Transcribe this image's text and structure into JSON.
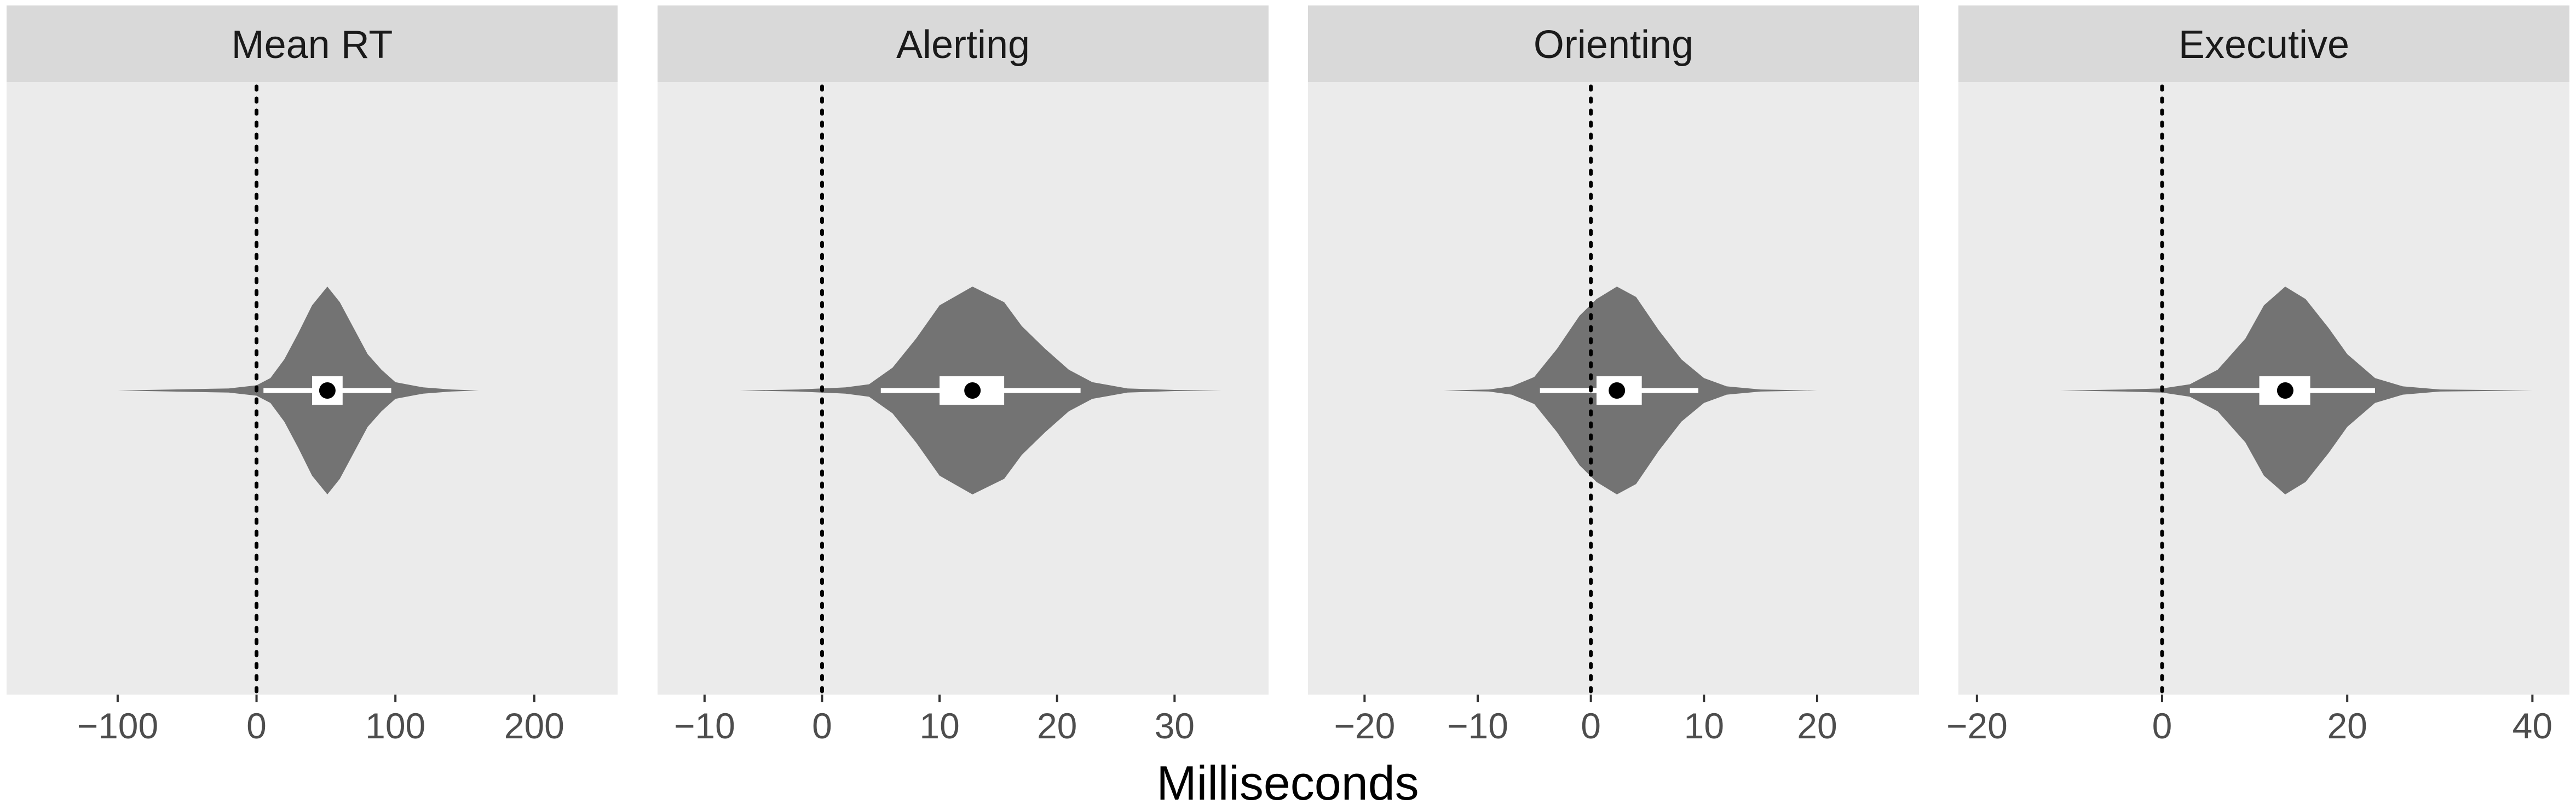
{
  "colors": {
    "page_bg": "#ffffff",
    "panel_bg": "#ebebeb",
    "strip_bg": "#d9d9d9",
    "strip_text": "#1a1a1a",
    "violin_fill": "#737373",
    "box_fill": "#ffffff",
    "whisker": "#ffffff",
    "median_point": "#000000",
    "reference_line": "#000000",
    "tick_label": "#4d4d4d",
    "axis_title": "#000000"
  },
  "x_axis_title": "Milliseconds",
  "chart_data": [
    {
      "type": "violin",
      "facet_label": "Mean RT",
      "xlim": [
        -180,
        260
      ],
      "ticks": [
        -100,
        0,
        100,
        200
      ],
      "tick_labels": [
        "−100",
        "0",
        "100",
        "200"
      ],
      "reference_line_x": 0,
      "reference_line_style": "dotted",
      "distribution": {
        "center": 51,
        "min": -100,
        "max": 160,
        "box": [
          40,
          62
        ],
        "whiskers": [
          5,
          97
        ],
        "point": 51,
        "density": [
          [
            -100,
            0.0
          ],
          [
            -60,
            0.01
          ],
          [
            -20,
            0.02
          ],
          [
            0,
            0.05
          ],
          [
            10,
            0.12
          ],
          [
            20,
            0.3
          ],
          [
            30,
            0.55
          ],
          [
            40,
            0.82
          ],
          [
            51,
            1.0
          ],
          [
            60,
            0.85
          ],
          [
            70,
            0.6
          ],
          [
            80,
            0.35
          ],
          [
            90,
            0.2
          ],
          [
            100,
            0.08
          ],
          [
            120,
            0.03
          ],
          [
            140,
            0.01
          ],
          [
            160,
            0.0
          ]
        ]
      }
    },
    {
      "type": "violin",
      "facet_label": "Alerting",
      "xlim": [
        -14,
        38
      ],
      "ticks": [
        -10,
        0,
        10,
        20,
        30
      ],
      "tick_labels": [
        "−10",
        "0",
        "10",
        "20",
        "30"
      ],
      "reference_line_x": 0,
      "reference_line_style": "dotted",
      "distribution": {
        "center": 12.8,
        "min": -7,
        "max": 34,
        "box": [
          10,
          15.5
        ],
        "whiskers": [
          5,
          22
        ],
        "point": 12.8,
        "density": [
          [
            -7,
            0.0
          ],
          [
            -2,
            0.01
          ],
          [
            2,
            0.03
          ],
          [
            4,
            0.06
          ],
          [
            6,
            0.22
          ],
          [
            8,
            0.5
          ],
          [
            10,
            0.82
          ],
          [
            12.8,
            1.0
          ],
          [
            15.5,
            0.85
          ],
          [
            17,
            0.62
          ],
          [
            19,
            0.4
          ],
          [
            21,
            0.2
          ],
          [
            23,
            0.08
          ],
          [
            26,
            0.02
          ],
          [
            30,
            0.005
          ],
          [
            34,
            0.0
          ]
        ]
      }
    },
    {
      "type": "violin",
      "facet_label": "Orienting",
      "xlim": [
        -25,
        29
      ],
      "ticks": [
        -20,
        -10,
        0,
        10,
        20
      ],
      "tick_labels": [
        "−20",
        "−10",
        "0",
        "10",
        "20"
      ],
      "reference_line_x": 0,
      "reference_line_style": "dotted",
      "distribution": {
        "center": 2.3,
        "min": -13,
        "max": 20,
        "box": [
          0.5,
          4.5
        ],
        "whiskers": [
          -4.5,
          9.5
        ],
        "point": 2.3,
        "density": [
          [
            -13,
            0.0
          ],
          [
            -9,
            0.01
          ],
          [
            -7,
            0.04
          ],
          [
            -5,
            0.13
          ],
          [
            -3,
            0.4
          ],
          [
            -1,
            0.72
          ],
          [
            0.5,
            0.88
          ],
          [
            2.3,
            1.0
          ],
          [
            4,
            0.9
          ],
          [
            6,
            0.58
          ],
          [
            8,
            0.3
          ],
          [
            10,
            0.12
          ],
          [
            12,
            0.04
          ],
          [
            15,
            0.01
          ],
          [
            20,
            0.0
          ]
        ]
      }
    },
    {
      "type": "violin",
      "facet_label": "Executive",
      "xlim": [
        -22,
        44
      ],
      "ticks": [
        -20,
        0,
        20,
        40
      ],
      "tick_labels": [
        "−20",
        "0",
        "20",
        "40"
      ],
      "reference_line_x": 0,
      "reference_line_style": "dotted",
      "distribution": {
        "center": 13.3,
        "min": -11,
        "max": 40,
        "box": [
          10.5,
          16
        ],
        "whiskers": [
          3,
          23
        ],
        "point": 13.3,
        "density": [
          [
            -11,
            0.0
          ],
          [
            -4,
            0.01
          ],
          [
            0,
            0.02
          ],
          [
            3,
            0.06
          ],
          [
            6,
            0.2
          ],
          [
            9,
            0.5
          ],
          [
            11,
            0.82
          ],
          [
            13.3,
            1.0
          ],
          [
            15.5,
            0.88
          ],
          [
            18,
            0.6
          ],
          [
            20,
            0.35
          ],
          [
            23,
            0.12
          ],
          [
            26,
            0.04
          ],
          [
            30,
            0.01
          ],
          [
            40,
            0.0
          ]
        ]
      }
    }
  ]
}
